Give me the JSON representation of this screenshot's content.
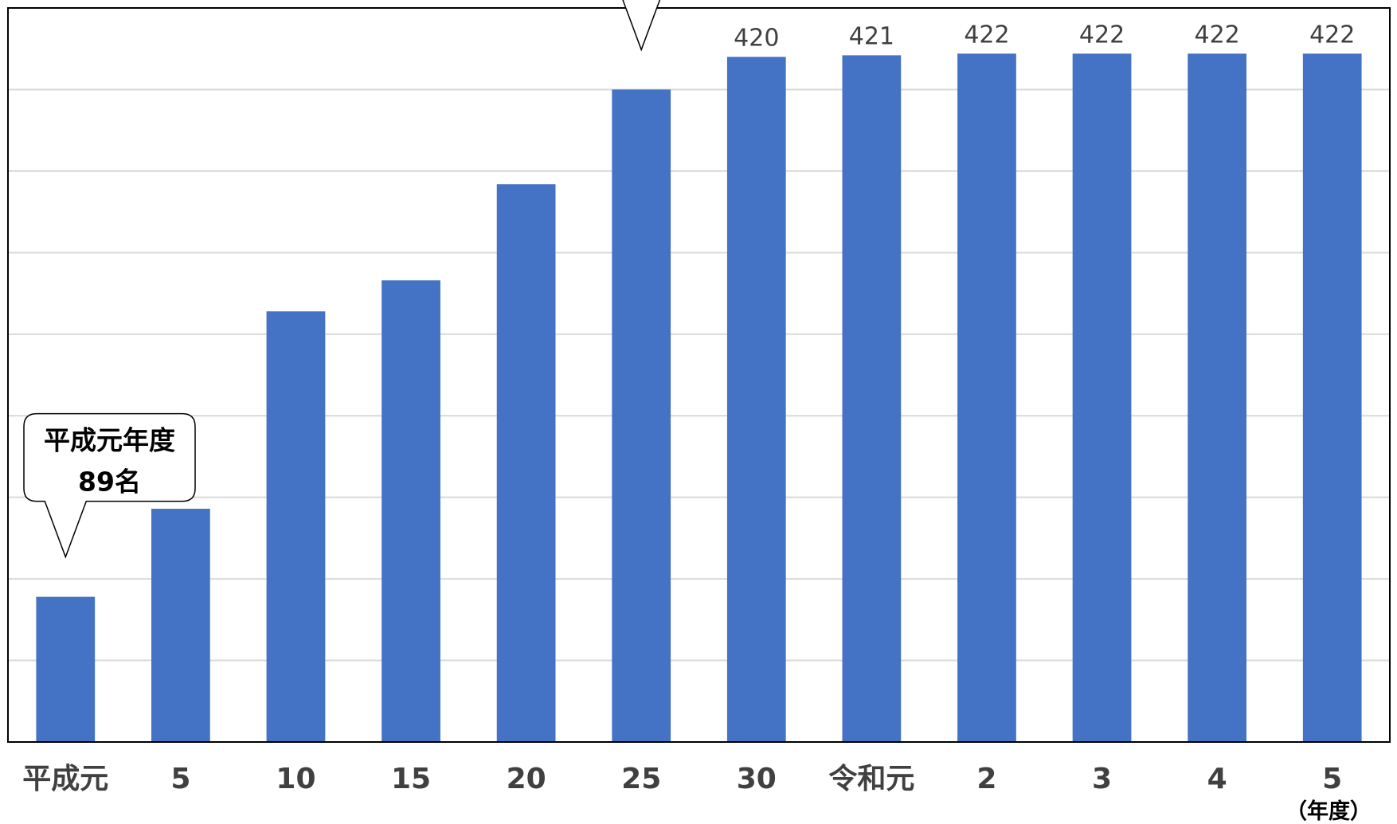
{
  "chart_data": {
    "type": "bar",
    "categories": [
      "平成元",
      "5",
      "10",
      "15",
      "20",
      "25",
      "30",
      "令和元",
      "2",
      "3",
      "4",
      "5"
    ],
    "values": [
      89,
      143,
      264,
      283,
      342,
      400,
      420,
      421,
      422,
      422,
      422,
      422
    ],
    "data_labels": [
      "",
      "",
      "",
      "",
      "",
      "",
      "420",
      "421",
      "422",
      "422",
      "422",
      "422"
    ],
    "xlabel_unit": "（年度）",
    "ylabel": "",
    "ylim": [
      0,
      450
    ],
    "grid": true,
    "bar_color": "#4472C4",
    "callouts": [
      {
        "category_index": 0,
        "lines": [
          "平成元年度",
          "89名"
        ]
      },
      {
        "category_index": 5,
        "lines": []
      }
    ]
  }
}
